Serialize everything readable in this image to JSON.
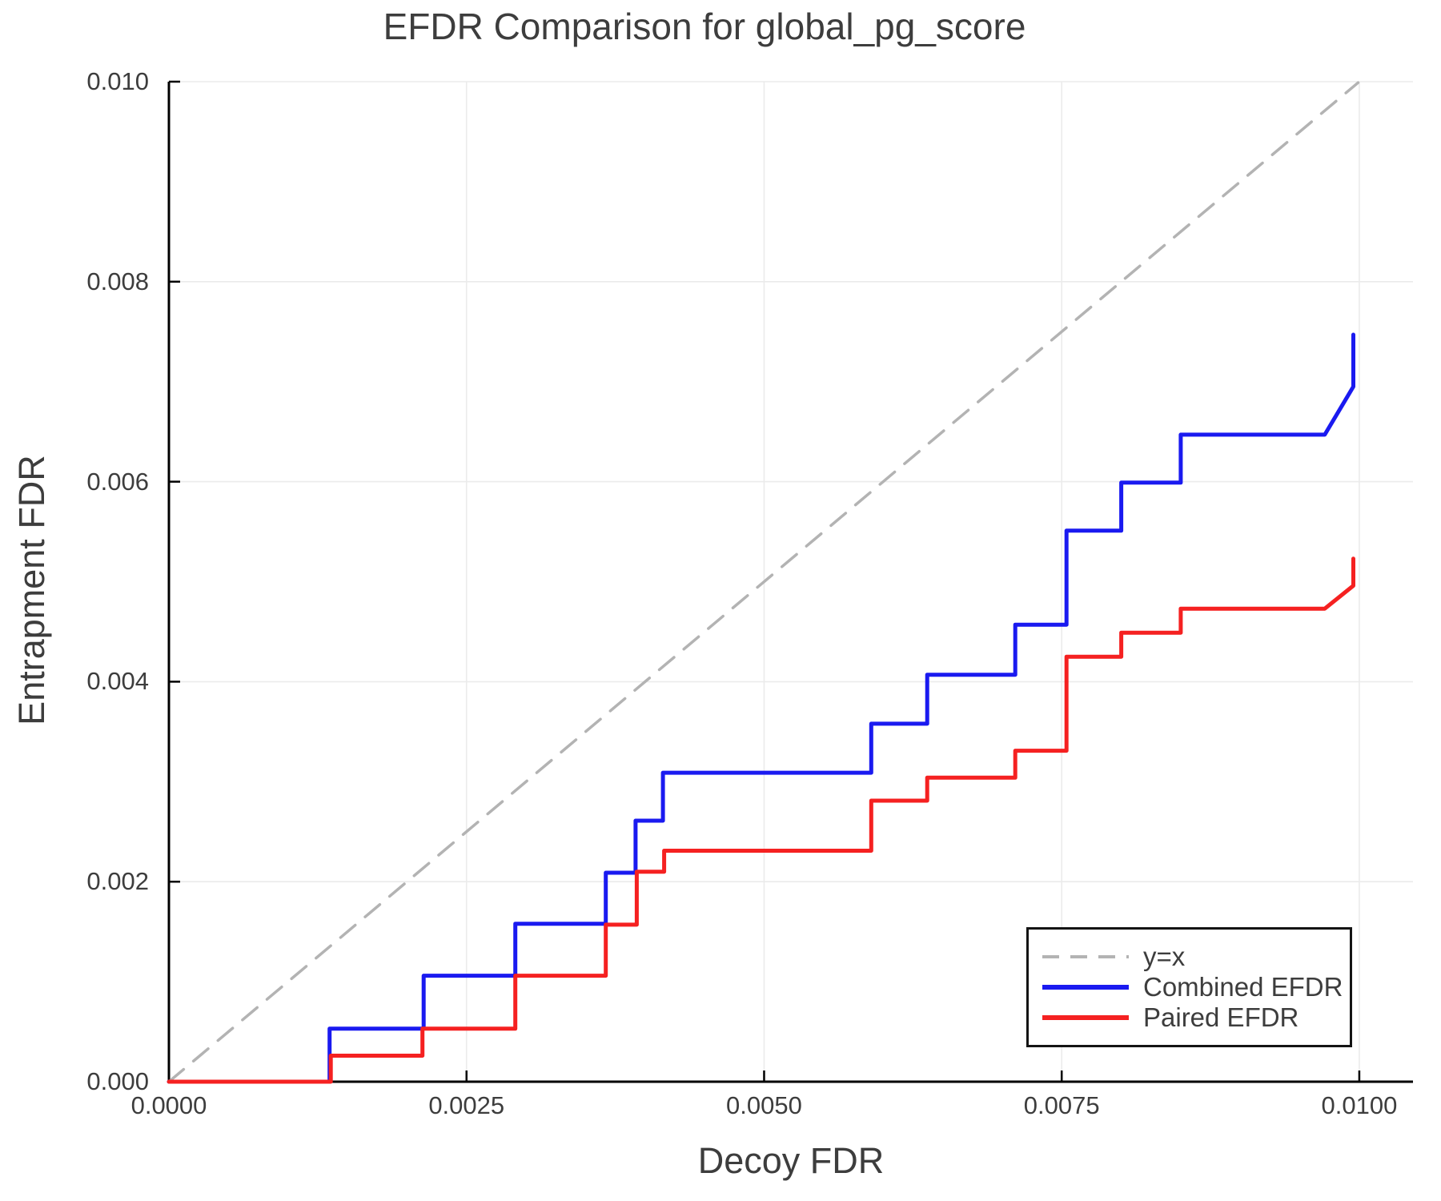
{
  "chart_data": {
    "type": "line",
    "title": "EFDR Comparison for global_pg_score",
    "xlabel": "Decoy FDR",
    "ylabel": "Entrapment FDR",
    "xlim": [
      0,
      0.010451
    ],
    "ylim": [
      0,
      0.01
    ],
    "xticks": [
      0.0,
      0.0025,
      0.005,
      0.0075,
      0.01
    ],
    "xtick_labels": [
      "0.0000",
      "0.0025",
      "0.0050",
      "0.0075",
      "0.0100"
    ],
    "yticks": [
      0.0,
      0.002,
      0.004,
      0.006,
      0.008,
      0.01
    ],
    "ytick_labels": [
      "0.000",
      "0.002",
      "0.004",
      "0.006",
      "0.008",
      "0.010"
    ],
    "grid": true,
    "grid_color": "#ebebeb",
    "axis_color": "#000000",
    "text_color": "#3d3d3d",
    "legend_position": "lower right",
    "series": [
      {
        "name": "y=x",
        "color": "#b3b3b3",
        "style": "dashed",
        "width": 3.5,
        "points": [
          [
            0.0,
            0.0
          ],
          [
            0.00999,
            0.00999
          ]
        ]
      },
      {
        "name": "Combined EFDR",
        "color": "#1a1af0",
        "style": "solid",
        "width": 5,
        "points": [
          [
            0.0,
            0.0
          ],
          [
            0.00135,
            0.0
          ],
          [
            0.00135,
            0.00053
          ],
          [
            0.00214,
            0.00053
          ],
          [
            0.00214,
            0.00106
          ],
          [
            0.00291,
            0.00106
          ],
          [
            0.00291,
            0.00158
          ],
          [
            0.00367,
            0.00158
          ],
          [
            0.00367,
            0.00209
          ],
          [
            0.00392,
            0.00209
          ],
          [
            0.00392,
            0.00261
          ],
          [
            0.00415,
            0.00261
          ],
          [
            0.00415,
            0.00309
          ],
          [
            0.0059,
            0.00309
          ],
          [
            0.0059,
            0.00358
          ],
          [
            0.00637,
            0.00358
          ],
          [
            0.00637,
            0.00407
          ],
          [
            0.00711,
            0.00407
          ],
          [
            0.00711,
            0.00457
          ],
          [
            0.00754,
            0.00457
          ],
          [
            0.00754,
            0.00551
          ],
          [
            0.008,
            0.00551
          ],
          [
            0.008,
            0.00599
          ],
          [
            0.0085,
            0.00599
          ],
          [
            0.0085,
            0.00647
          ],
          [
            0.00971,
            0.00647
          ],
          [
            0.00995,
            0.00695
          ],
          [
            0.00995,
            0.00747
          ]
        ]
      },
      {
        "name": "Paired EFDR",
        "color": "#f52121",
        "style": "solid",
        "width": 5,
        "points": [
          [
            0.0,
            0.0
          ],
          [
            0.00136,
            0.0
          ],
          [
            0.00136,
            0.00026
          ],
          [
            0.00213,
            0.00026
          ],
          [
            0.00213,
            0.00053
          ],
          [
            0.00291,
            0.00053
          ],
          [
            0.00291,
            0.00106
          ],
          [
            0.00367,
            0.00106
          ],
          [
            0.00367,
            0.00157
          ],
          [
            0.00393,
            0.00157
          ],
          [
            0.00393,
            0.0021
          ],
          [
            0.00416,
            0.0021
          ],
          [
            0.00416,
            0.00231
          ],
          [
            0.0059,
            0.00231
          ],
          [
            0.0059,
            0.00281
          ],
          [
            0.00637,
            0.00281
          ],
          [
            0.00637,
            0.00304
          ],
          [
            0.00711,
            0.00304
          ],
          [
            0.00711,
            0.00331
          ],
          [
            0.00754,
            0.00331
          ],
          [
            0.00754,
            0.00425
          ],
          [
            0.008,
            0.00425
          ],
          [
            0.008,
            0.00449
          ],
          [
            0.0085,
            0.00449
          ],
          [
            0.0085,
            0.00473
          ],
          [
            0.00971,
            0.00473
          ],
          [
            0.00995,
            0.00496
          ],
          [
            0.00995,
            0.00523
          ]
        ]
      }
    ]
  }
}
